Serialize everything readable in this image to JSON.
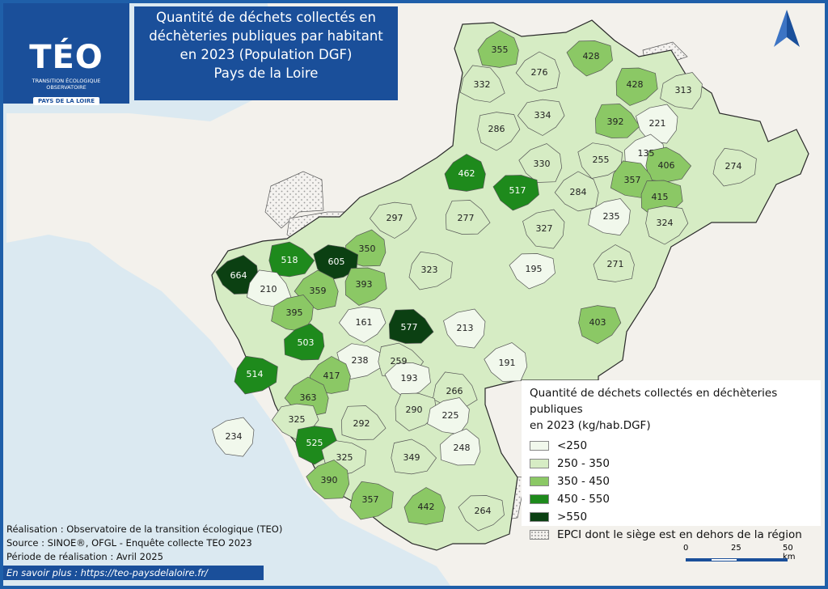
{
  "title": {
    "line1": "Quantité de déchets collectés en",
    "line2": "déchèteries publiques par habitant",
    "line3": "en 2023 (Population DGF)",
    "line4": "Pays de la Loire"
  },
  "logo": {
    "word": "TÉO",
    "sub1": "TRANSITION ÉCOLOGIQUE",
    "sub2": "OBSERVATOIRE",
    "region": "PAYS DE LA LOIRE"
  },
  "legend": {
    "title_line1": "Quantité de déchets collectés en déchèteries publiques",
    "title_line2": "en 2023 (kg/hab.DGF)",
    "classes": [
      {
        "label": "<250",
        "color": "#f1f8ec"
      },
      {
        "label": "250 - 350",
        "color": "#d6ecc4"
      },
      {
        "label": "350 - 450",
        "color": "#8bc865"
      },
      {
        "label": "450 - 550",
        "color": "#1e8a1c"
      },
      {
        "label": ">550",
        "color": "#0b4012"
      },
      {
        "label": "EPCI dont le siège est en dehors de la région",
        "color": "#f4f2ef"
      }
    ]
  },
  "credits": {
    "line1": "Réalisation : Observatoire de la transition écologique (TEO)",
    "line2": "Source : SINOE®, OFGL - Enquête collecte TEO 2023",
    "line3": "Période de réalisation : Avril 2025"
  },
  "link": "En savoir plus : https://teo-paysdelaloire.fr/",
  "scale": {
    "l0": "0",
    "l1": "25",
    "l2": "50 km"
  },
  "colors": {
    "frame": "#1f5fa9",
    "sea": "#dbe9f1",
    "land": "#f3f1ec",
    "border": "#2a2a2a"
  },
  "map_values": [
    {
      "value": "355"
    },
    {
      "value": "428"
    },
    {
      "value": "332"
    },
    {
      "value": "276"
    },
    {
      "value": "428"
    },
    {
      "value": "313"
    },
    {
      "value": "334"
    },
    {
      "value": "392"
    },
    {
      "value": "221"
    },
    {
      "value": "286"
    },
    {
      "value": "135"
    },
    {
      "value": "255"
    },
    {
      "value": "406"
    },
    {
      "value": "330"
    },
    {
      "value": "274"
    },
    {
      "value": "462"
    },
    {
      "value": "517"
    },
    {
      "value": "357"
    },
    {
      "value": "284"
    },
    {
      "value": "415"
    },
    {
      "value": "235"
    },
    {
      "value": "297"
    },
    {
      "value": "277"
    },
    {
      "value": "327"
    },
    {
      "value": "324"
    },
    {
      "value": "350"
    },
    {
      "value": "605"
    },
    {
      "value": "518"
    },
    {
      "value": "664"
    },
    {
      "value": "323"
    },
    {
      "value": "271"
    },
    {
      "value": "195"
    },
    {
      "value": "210"
    },
    {
      "value": "359"
    },
    {
      "value": "393"
    },
    {
      "value": "395"
    },
    {
      "value": "161"
    },
    {
      "value": "577"
    },
    {
      "value": "213"
    },
    {
      "value": "403"
    },
    {
      "value": "503"
    },
    {
      "value": "238"
    },
    {
      "value": "259"
    },
    {
      "value": "191"
    },
    {
      "value": "514"
    },
    {
      "value": "417"
    },
    {
      "value": "193"
    },
    {
      "value": "266"
    },
    {
      "value": "363"
    },
    {
      "value": "290"
    },
    {
      "value": "225"
    },
    {
      "value": "325"
    },
    {
      "value": "292"
    },
    {
      "value": "234"
    },
    {
      "value": "525"
    },
    {
      "value": "248"
    },
    {
      "value": "325"
    },
    {
      "value": "349"
    },
    {
      "value": "390"
    },
    {
      "value": "357"
    },
    {
      "value": "442"
    },
    {
      "value": "264"
    }
  ]
}
